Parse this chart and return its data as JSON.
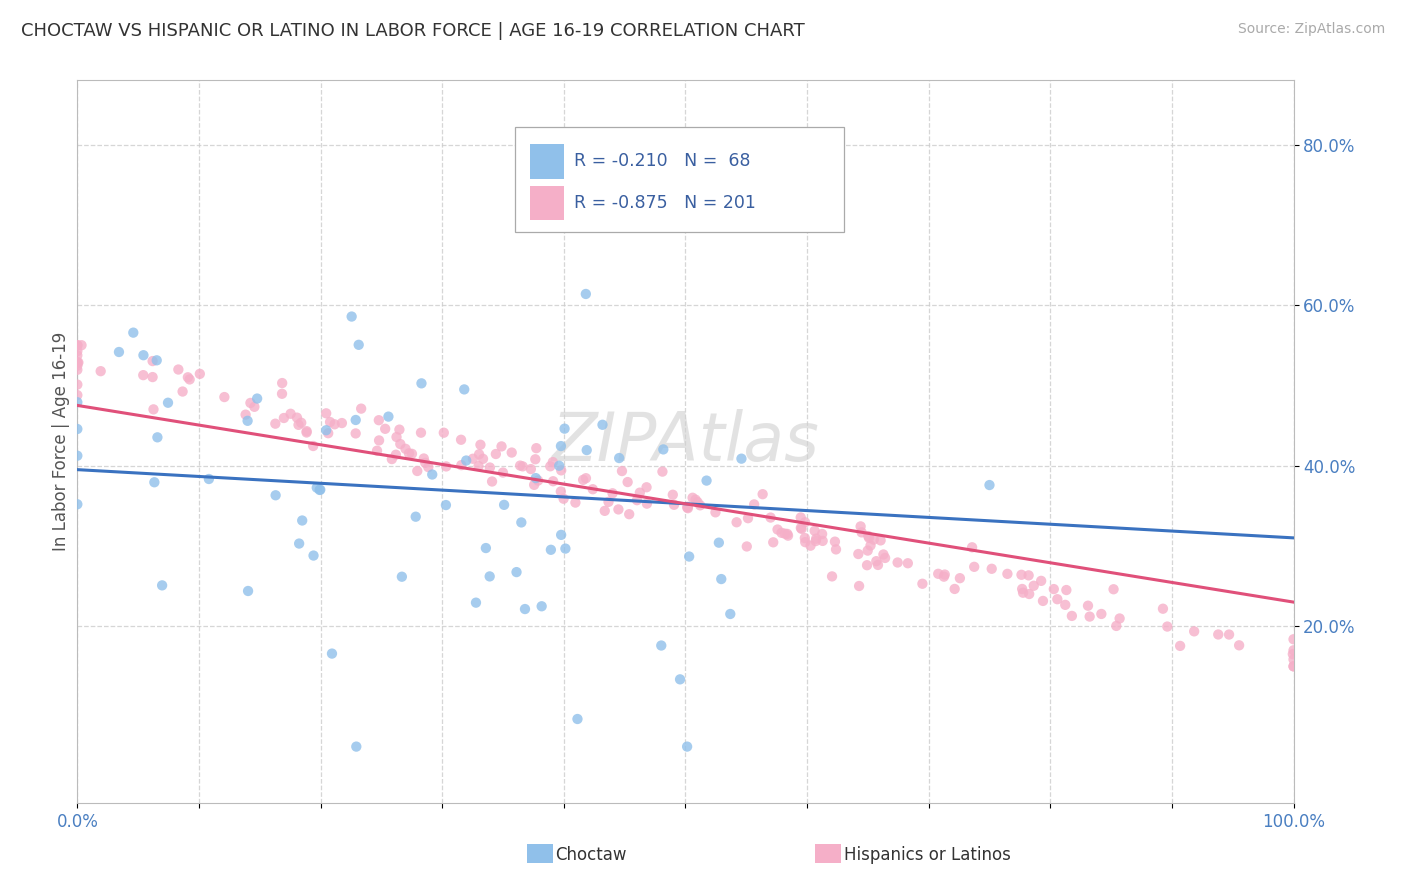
{
  "title": "CHOCTAW VS HISPANIC OR LATINO IN LABOR FORCE | AGE 16-19 CORRELATION CHART",
  "source": "Source: ZipAtlas.com",
  "ylabel": "In Labor Force | Age 16-19",
  "yticks": [
    "20.0%",
    "40.0%",
    "60.0%",
    "80.0%"
  ],
  "ytick_vals": [
    0.2,
    0.4,
    0.6,
    0.8
  ],
  "xlim": [
    0.0,
    1.0
  ],
  "ylim": [
    -0.02,
    0.88
  ],
  "choctaw_color": "#90c0ea",
  "hispanic_color": "#f5afc8",
  "choctaw_line_color": "#3a72c0",
  "hispanic_line_color": "#e0507a",
  "choctaw_R": -0.21,
  "choctaw_N": 68,
  "hispanic_R": -0.875,
  "hispanic_N": 201,
  "background_color": "#ffffff",
  "grid_color": "#cccccc",
  "tick_color": "#4a7fc1",
  "title_color": "#333333",
  "legend_text_color": "#3a5fa0",
  "watermark_color": "#d0d0d0",
  "choctaw_slope": -0.085,
  "choctaw_intercept": 0.395,
  "hispanic_slope": -0.245,
  "hispanic_intercept": 0.475
}
